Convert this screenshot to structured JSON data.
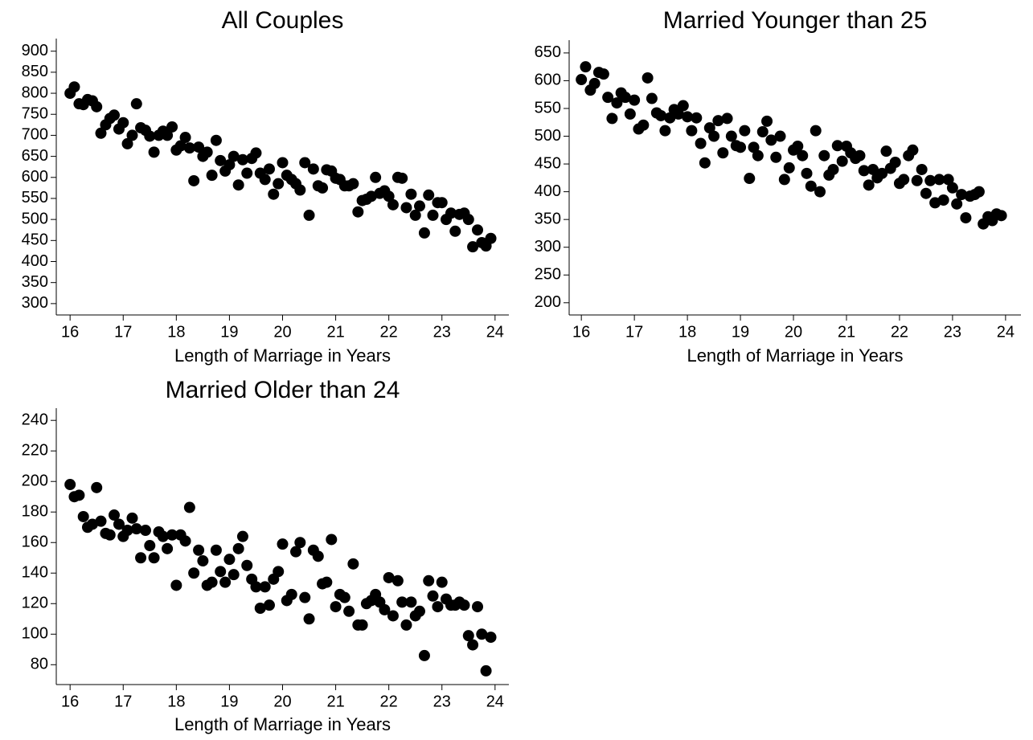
{
  "chart_data": [
    {
      "type": "scatter",
      "title": "All Couples",
      "x_label": "Length of Marriage in Years",
      "color": "#000000",
      "x": [
        16,
        16.08,
        16.17,
        16.25,
        16.33,
        16.42,
        16.5,
        16.58,
        16.67,
        16.75,
        16.83,
        16.92,
        17,
        17.08,
        17.17,
        17.25,
        17.33,
        17.42,
        17.5,
        17.58,
        17.67,
        17.75,
        17.83,
        17.92,
        18,
        18.08,
        18.17,
        18.25,
        18.33,
        18.42,
        18.5,
        18.58,
        18.67,
        18.75,
        18.83,
        18.92,
        19,
        19.08,
        19.17,
        19.25,
        19.33,
        19.42,
        19.5,
        19.58,
        19.67,
        19.75,
        19.83,
        19.92,
        20,
        20.08,
        20.17,
        20.25,
        20.33,
        20.42,
        20.5,
        20.58,
        20.67,
        20.75,
        20.83,
        20.92,
        21,
        21.08,
        21.17,
        21.25,
        21.33,
        21.42,
        21.5,
        21.58,
        21.67,
        21.75,
        21.83,
        21.92,
        22,
        22.08,
        22.17,
        22.25,
        22.33,
        22.42,
        22.5,
        22.58,
        22.67,
        22.75,
        22.83,
        22.92,
        23,
        23.08,
        23.17,
        23.25,
        23.33,
        23.42,
        23.5,
        23.58,
        23.67,
        23.75,
        23.83,
        23.92
      ],
      "values": [
        800,
        815,
        775,
        773,
        785,
        782,
        768,
        705,
        725,
        740,
        748,
        715,
        730,
        680,
        700,
        775,
        718,
        712,
        698,
        660,
        700,
        710,
        700,
        720,
        665,
        675,
        695,
        670,
        592,
        672,
        650,
        660,
        605,
        688,
        640,
        615,
        630,
        650,
        582,
        642,
        610,
        645,
        658,
        610,
        595,
        620,
        560,
        585,
        635,
        605,
        595,
        585,
        570,
        635,
        510,
        620,
        580,
        575,
        618,
        615,
        598,
        595,
        580,
        580,
        585,
        518,
        545,
        548,
        555,
        600,
        562,
        568,
        555,
        535,
        600,
        598,
        528,
        560,
        510,
        532,
        468,
        558,
        510,
        540,
        540,
        500,
        515,
        472,
        512,
        515,
        500,
        435,
        475,
        445,
        437,
        455
      ],
      "xlim": [
        15.74,
        24.26
      ],
      "ylim": [
        273,
        930
      ],
      "xticks": [
        16,
        17,
        18,
        19,
        20,
        21,
        22,
        23,
        24
      ],
      "yticks": [
        300,
        350,
        400,
        450,
        500,
        550,
        600,
        650,
        700,
        750,
        800,
        850,
        900
      ]
    },
    {
      "type": "scatter",
      "title": "Married Younger than 25",
      "x_label": "Length of Marriage in Years",
      "color": "#000000",
      "x": [
        16,
        16.08,
        16.17,
        16.25,
        16.33,
        16.42,
        16.5,
        16.58,
        16.67,
        16.75,
        16.83,
        16.92,
        17,
        17.08,
        17.17,
        17.25,
        17.33,
        17.42,
        17.5,
        17.58,
        17.67,
        17.75,
        17.83,
        17.92,
        18,
        18.08,
        18.17,
        18.25,
        18.33,
        18.42,
        18.5,
        18.58,
        18.67,
        18.75,
        18.83,
        18.92,
        19,
        19.08,
        19.17,
        19.25,
        19.33,
        19.42,
        19.5,
        19.58,
        19.67,
        19.75,
        19.83,
        19.92,
        20,
        20.08,
        20.17,
        20.25,
        20.33,
        20.42,
        20.5,
        20.58,
        20.67,
        20.75,
        20.83,
        20.92,
        21,
        21.08,
        21.17,
        21.25,
        21.33,
        21.42,
        21.5,
        21.58,
        21.67,
        21.75,
        21.83,
        21.92,
        22,
        22.08,
        22.17,
        22.25,
        22.33,
        22.42,
        22.5,
        22.58,
        22.67,
        22.75,
        22.83,
        22.92,
        23,
        23.08,
        23.17,
        23.25,
        23.33,
        23.42,
        23.5,
        23.58,
        23.67,
        23.75,
        23.83,
        23.92
      ],
      "values": [
        602,
        625,
        583,
        595,
        615,
        612,
        570,
        532,
        560,
        578,
        570,
        540,
        565,
        513,
        520,
        605,
        568,
        542,
        537,
        510,
        533,
        548,
        540,
        555,
        535,
        510,
        533,
        487,
        452,
        515,
        500,
        528,
        470,
        532,
        500,
        483,
        480,
        510,
        424,
        480,
        465,
        508,
        527,
        493,
        462,
        500,
        422,
        443,
        475,
        482,
        465,
        433,
        410,
        510,
        400,
        465,
        430,
        440,
        483,
        455,
        482,
        470,
        460,
        465,
        438,
        412,
        440,
        425,
        433,
        473,
        442,
        453,
        415,
        422,
        465,
        475,
        420,
        440,
        397,
        420,
        380,
        422,
        385,
        422,
        407,
        378,
        395,
        353,
        392,
        395,
        400,
        342,
        355,
        348,
        360,
        357
      ],
      "xlim": [
        15.77,
        24.29
      ],
      "ylim": [
        178,
        673
      ],
      "xticks": [
        16,
        17,
        18,
        19,
        20,
        21,
        22,
        23,
        24
      ],
      "yticks": [
        200,
        250,
        300,
        350,
        400,
        450,
        500,
        550,
        600,
        650
      ]
    },
    {
      "type": "scatter",
      "title": "Married Older than 24",
      "x_label": "Length of Marriage in Years",
      "color": "#000000",
      "x": [
        16,
        16.08,
        16.17,
        16.25,
        16.33,
        16.42,
        16.5,
        16.58,
        16.67,
        16.75,
        16.83,
        16.92,
        17,
        17.08,
        17.17,
        17.25,
        17.33,
        17.42,
        17.5,
        17.58,
        17.67,
        17.75,
        17.83,
        17.92,
        18,
        18.08,
        18.17,
        18.25,
        18.33,
        18.42,
        18.5,
        18.58,
        18.67,
        18.75,
        18.83,
        18.92,
        19,
        19.08,
        19.17,
        19.25,
        19.33,
        19.42,
        19.5,
        19.58,
        19.67,
        19.75,
        19.83,
        19.92,
        20,
        20.08,
        20.17,
        20.25,
        20.33,
        20.42,
        20.5,
        20.58,
        20.67,
        20.75,
        20.83,
        20.92,
        21,
        21.08,
        21.17,
        21.25,
        21.33,
        21.42,
        21.5,
        21.58,
        21.67,
        21.75,
        21.83,
        21.92,
        22,
        22.08,
        22.17,
        22.25,
        22.33,
        22.42,
        22.5,
        22.58,
        22.67,
        22.75,
        22.83,
        22.92,
        23,
        23.08,
        23.17,
        23.25,
        23.33,
        23.42,
        23.5,
        23.58,
        23.67,
        23.75,
        23.83,
        23.92
      ],
      "values": [
        198,
        190,
        191,
        177,
        170,
        172,
        196,
        174,
        166,
        165,
        178,
        172,
        164,
        168,
        176,
        169,
        150,
        168,
        158,
        150,
        167,
        164,
        156,
        165,
        132,
        165,
        161,
        183,
        140,
        155,
        148,
        132,
        134,
        155,
        141,
        134,
        149,
        139,
        156,
        164,
        145,
        136,
        131,
        117,
        131,
        119,
        136,
        141,
        159,
        122,
        126,
        154,
        160,
        124,
        110,
        155,
        151,
        133,
        134,
        162,
        118,
        126,
        124,
        115,
        146,
        106,
        106,
        120,
        122,
        126,
        121,
        116,
        137,
        112,
        135,
        121,
        106,
        121,
        112,
        115,
        86,
        135,
        125,
        118,
        134,
        123,
        119,
        119,
        121,
        119,
        99,
        93,
        118,
        100,
        76,
        98
      ],
      "xlim": [
        15.74,
        24.26
      ],
      "ylim": [
        67,
        248
      ],
      "xticks": [
        16,
        17,
        18,
        19,
        20,
        21,
        22,
        23,
        24
      ],
      "yticks": [
        80,
        100,
        120,
        140,
        160,
        180,
        200,
        220,
        240
      ]
    }
  ]
}
